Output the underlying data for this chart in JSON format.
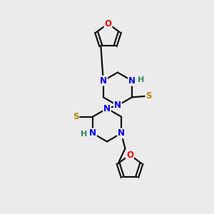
{
  "bg_color": "#ebebeb",
  "bond_color": "#111111",
  "N_color": "#0000ee",
  "O_color": "#ee0000",
  "S_color": "#b8860b",
  "H_color": "#2e8b57",
  "line_width": 1.6,
  "font_size_atom": 8.5,
  "fig_size": [
    3.0,
    3.0
  ],
  "dpi": 100,
  "xlim": [
    0,
    10
  ],
  "ylim": [
    0,
    10
  ]
}
